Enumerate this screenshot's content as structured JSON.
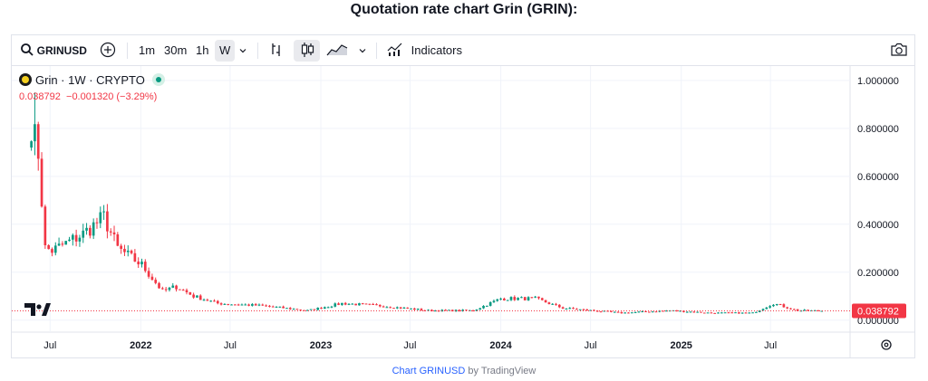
{
  "page": {
    "title": "Quotation rate chart Grin (GRIN):"
  },
  "toolbar": {
    "symbol": "GRINUSD",
    "intervals": [
      "1m",
      "30m",
      "1h",
      "W"
    ],
    "active_interval": "W",
    "indicators_label": "Indicators"
  },
  "legend": {
    "name": "Grin · 1W · CRYPTO",
    "price": "0.038792",
    "change": "−0.001320",
    "change_pct": "(−3.29%)"
  },
  "footer": {
    "link_text": "Chart GRINUSD",
    "by_text": "by TradingView"
  },
  "colors": {
    "up": "#089981",
    "down": "#f23645",
    "grid": "#f0f3fa",
    "accent": "#2962ff"
  },
  "chart_data": {
    "type": "candlestick",
    "title": "Quotation rate chart Grin (GRIN):",
    "x_tick_labels": [
      "Jul",
      "2022",
      "Jul",
      "2023",
      "Jul",
      "2024",
      "Jul",
      "2025",
      "Jul"
    ],
    "y_tick_labels": [
      "1.000000",
      "0.800000",
      "0.600000",
      "0.400000",
      "0.200000",
      "0.000000"
    ],
    "y_ticks": [
      1.0,
      0.8,
      0.6,
      0.4,
      0.2,
      0.0
    ],
    "x_range": [
      "2021-05-10",
      "2025-11-10"
    ],
    "y_range": [
      -0.05,
      1.06
    ],
    "last_price": 0.038792,
    "last_price_label": "0.038792",
    "series_close_keypoints": [
      {
        "date": "2021-05-24",
        "close": 0.82
      },
      {
        "date": "2021-06-07",
        "close": 0.7
      },
      {
        "date": "2021-06-21",
        "close": 0.3
      },
      {
        "date": "2021-07-05",
        "close": 0.29
      },
      {
        "date": "2021-08-02",
        "close": 0.32
      },
      {
        "date": "2021-09-06",
        "close": 0.36
      },
      {
        "date": "2021-10-18",
        "close": 0.43
      },
      {
        "date": "2021-11-15",
        "close": 0.3
      },
      {
        "date": "2022-01-03",
        "close": 0.23
      },
      {
        "date": "2022-02-14",
        "close": 0.12
      },
      {
        "date": "2022-03-14",
        "close": 0.14
      },
      {
        "date": "2022-04-18",
        "close": 0.1
      },
      {
        "date": "2022-06-06",
        "close": 0.07
      },
      {
        "date": "2022-09-05",
        "close": 0.06
      },
      {
        "date": "2022-12-05",
        "close": 0.04
      },
      {
        "date": "2023-02-13",
        "close": 0.07
      },
      {
        "date": "2023-05-01",
        "close": 0.06
      },
      {
        "date": "2023-08-07",
        "close": 0.04
      },
      {
        "date": "2023-11-06",
        "close": 0.04
      },
      {
        "date": "2024-01-01",
        "close": 0.09
      },
      {
        "date": "2024-03-11",
        "close": 0.09
      },
      {
        "date": "2024-05-06",
        "close": 0.05
      },
      {
        "date": "2024-09-02",
        "close": 0.03
      },
      {
        "date": "2024-12-09",
        "close": 0.04
      },
      {
        "date": "2025-03-03",
        "close": 0.03
      },
      {
        "date": "2025-05-26",
        "close": 0.03
      },
      {
        "date": "2025-07-07",
        "close": 0.07
      },
      {
        "date": "2025-08-25",
        "close": 0.04
      },
      {
        "date": "2025-10-13",
        "close": 0.038792
      }
    ],
    "peak": {
      "date": "2021-05-24",
      "high": 0.95
    },
    "grid": true
  }
}
